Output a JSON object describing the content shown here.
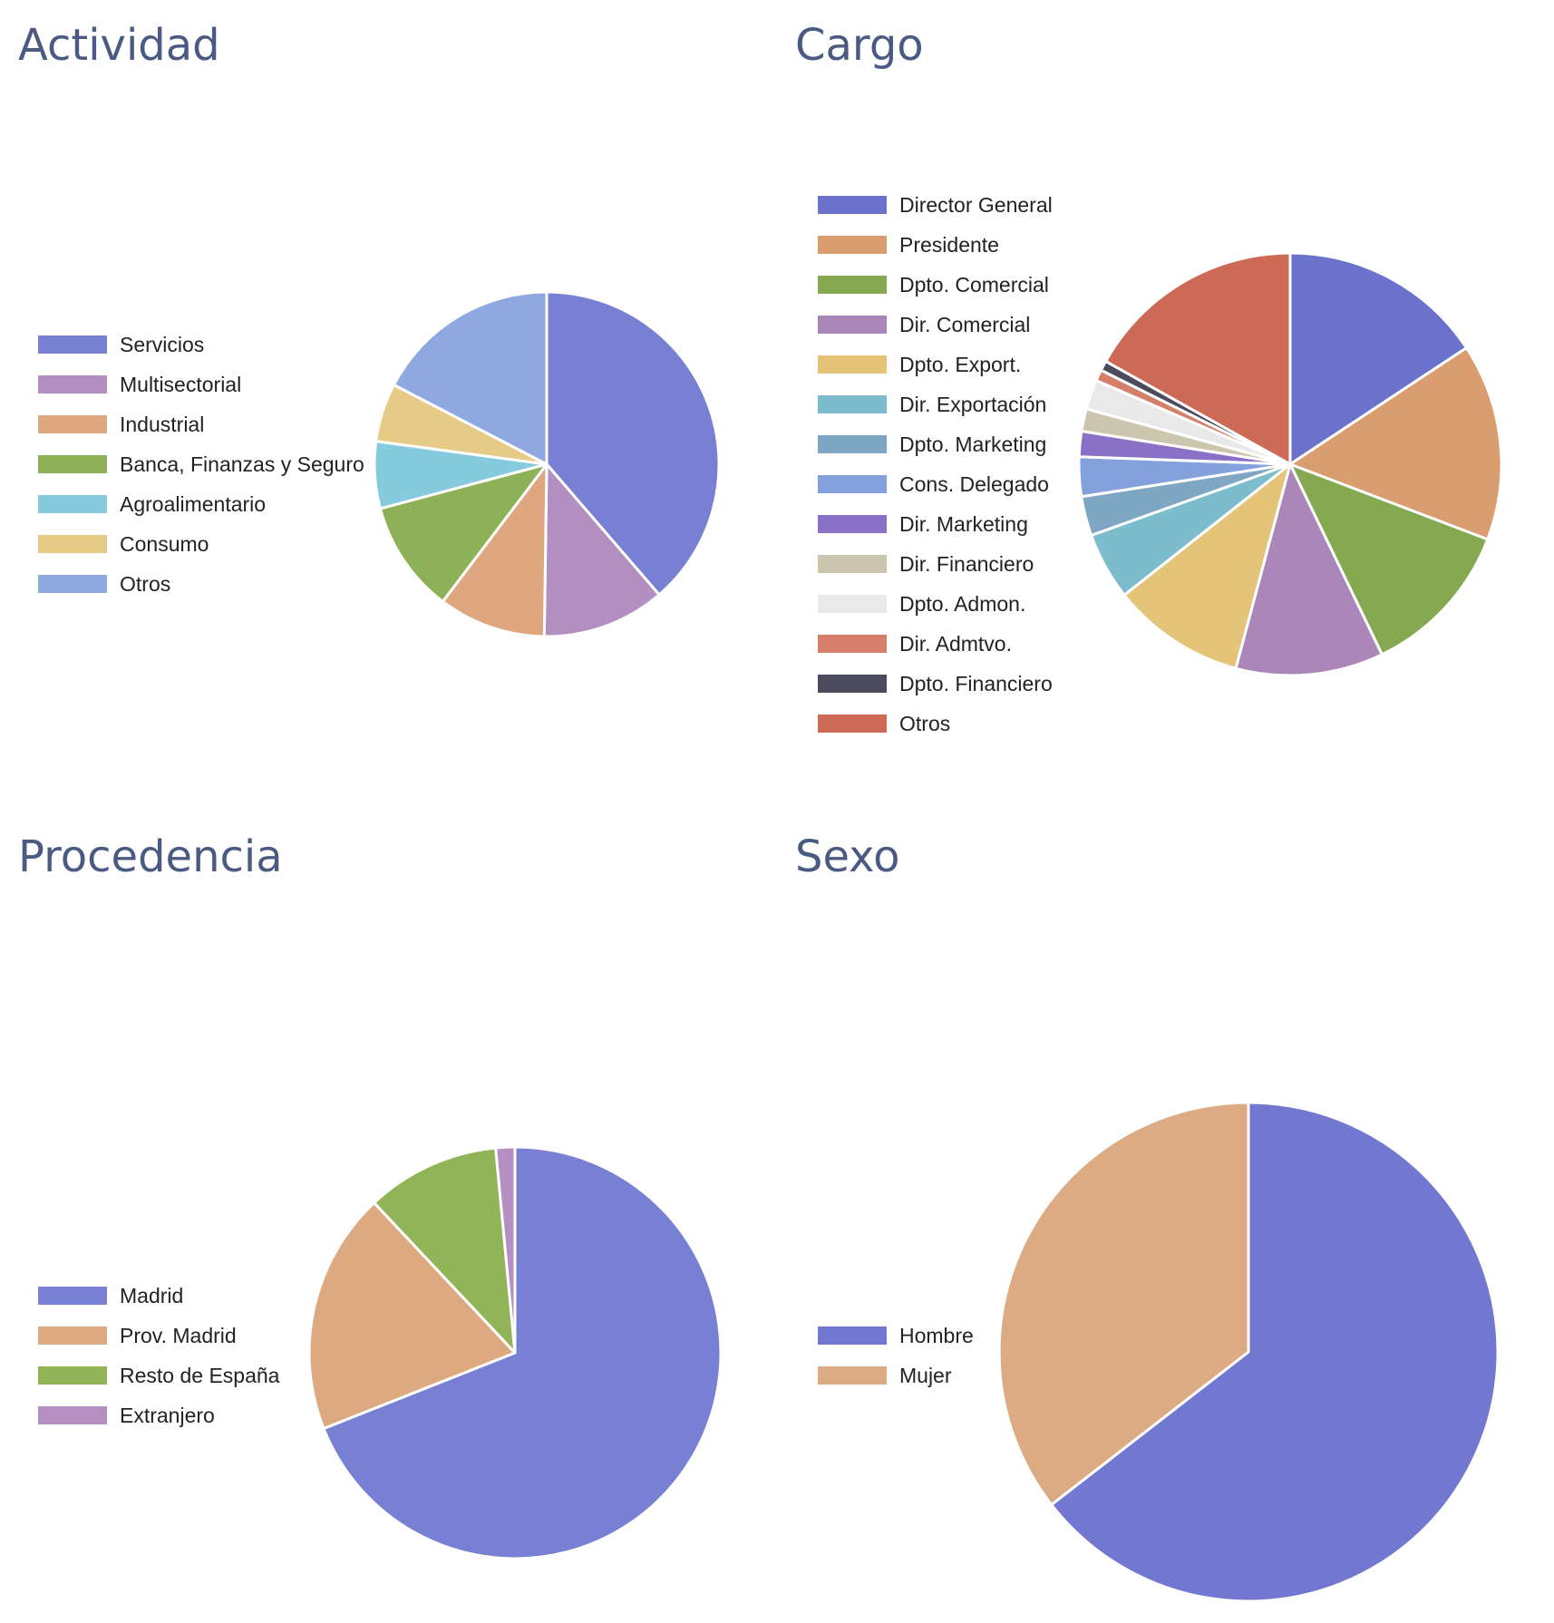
{
  "chart_data": [
    {
      "type": "pie",
      "title": "Actividad",
      "legend_position": "left",
      "start_angle_deg": 0,
      "colors": [
        "#7780d2",
        "#b28fc0",
        "#dea77f",
        "#8db157",
        "#86cbdd",
        "#e6cb86",
        "#8fa9e0"
      ],
      "labels": [
        "Servicios",
        "Multisectorial",
        "Industrial",
        "Banca, Finanzas y Seguro",
        "Agroalimentario",
        "Consumo",
        "Otros"
      ],
      "values": [
        34.5,
        10.3,
        9.0,
        9.4,
        5.6,
        4.9,
        15.5
      ]
    },
    {
      "type": "pie",
      "title": "Cargo",
      "legend_position": "left",
      "start_angle_deg": 0,
      "colors": [
        "#6a72cc",
        "#d99d70",
        "#84a951",
        "#ab86b8",
        "#e3c479",
        "#7dbccc",
        "#7fa7c4",
        "#84a1dd",
        "#8a70c6",
        "#cdc6ae",
        "#e9e9e9",
        "#d57e6a",
        "#4b4b5c",
        "#cc6a56"
      ],
      "labels": [
        "Director General",
        "Presidente",
        "Dpto. Comercial",
        "Dir. Comercial",
        "Dpto. Export.",
        "Dir. Exportación",
        "Dpto. Marketing",
        "Cons. Delegado",
        "Dir. Marketing",
        "Dir. Financiero",
        "Dpto. Admon.",
        "Dir. Admtvo.",
        "Dpto. Financiero",
        "Otros"
      ],
      "values": [
        14.6,
        14.0,
        11.2,
        10.5,
        9.5,
        4.8,
        2.8,
        2.8,
        1.8,
        1.6,
        2.1,
        0.8,
        0.7,
        15.7
      ]
    },
    {
      "type": "pie",
      "title": "Procedencia",
      "legend_position": "left",
      "start_angle_deg": 0,
      "colors": [
        "#7780d2",
        "#dda981",
        "#91b459",
        "#b58fc1"
      ],
      "labels": [
        "Madrid",
        "Prov. Madrid",
        "Resto de España",
        "Extranjero"
      ],
      "values": [
        69.0,
        19.0,
        10.5,
        1.5
      ]
    },
    {
      "type": "pie",
      "title": "Sexo",
      "legend_position": "left",
      "start_angle_deg": 0,
      "colors": [
        "#7278cf",
        "#dcab84"
      ],
      "labels": [
        "Hombre",
        "Mujer"
      ],
      "values": [
        64.5,
        35.5
      ]
    }
  ]
}
